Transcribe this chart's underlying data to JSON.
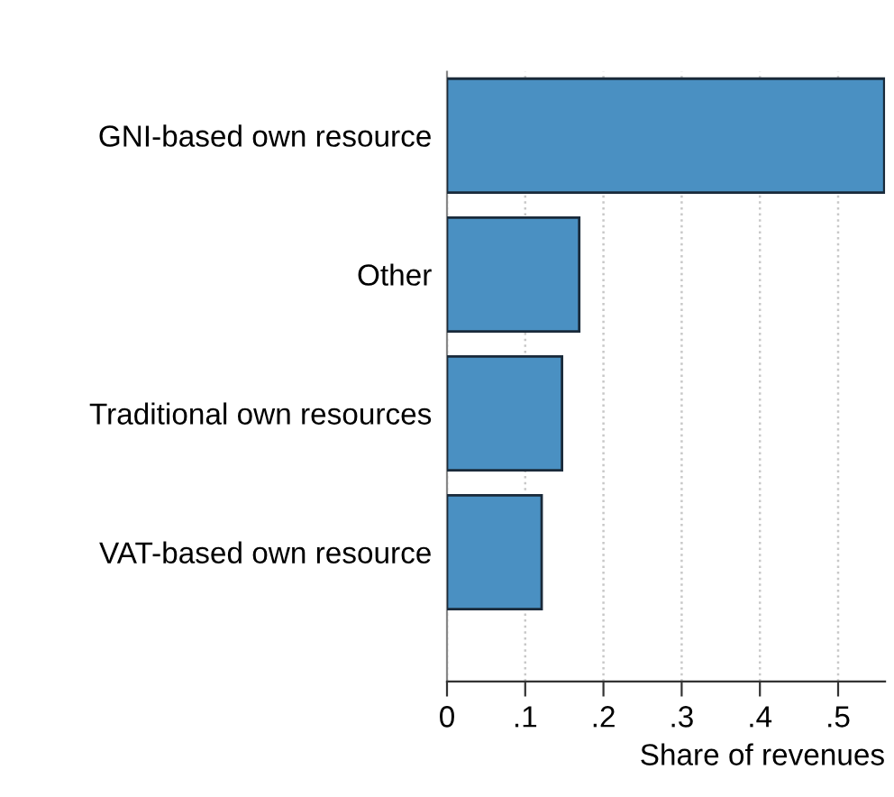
{
  "chart_data": {
    "type": "bar",
    "orientation": "horizontal",
    "categories": [
      "GNI-based own resource",
      "Other",
      "Traditional own resources",
      "VAT-based own resource"
    ],
    "values": [
      0.559,
      0.169,
      0.147,
      0.121
    ],
    "color": "#4a90c2",
    "xlabel": "Share of revenues",
    "xlim": [
      0,
      0.56
    ],
    "xticks": [
      0,
      {
        "value": 0.1,
        "label": ".1"
      },
      {
        "value": 0.2,
        "label": ".2"
      },
      {
        "value": 0.3,
        "label": ".3"
      },
      {
        "value": 0.4,
        "label": ".4"
      },
      {
        "value": 0.5,
        "label": ".5"
      }
    ],
    "grid": "x",
    "legend": false
  }
}
